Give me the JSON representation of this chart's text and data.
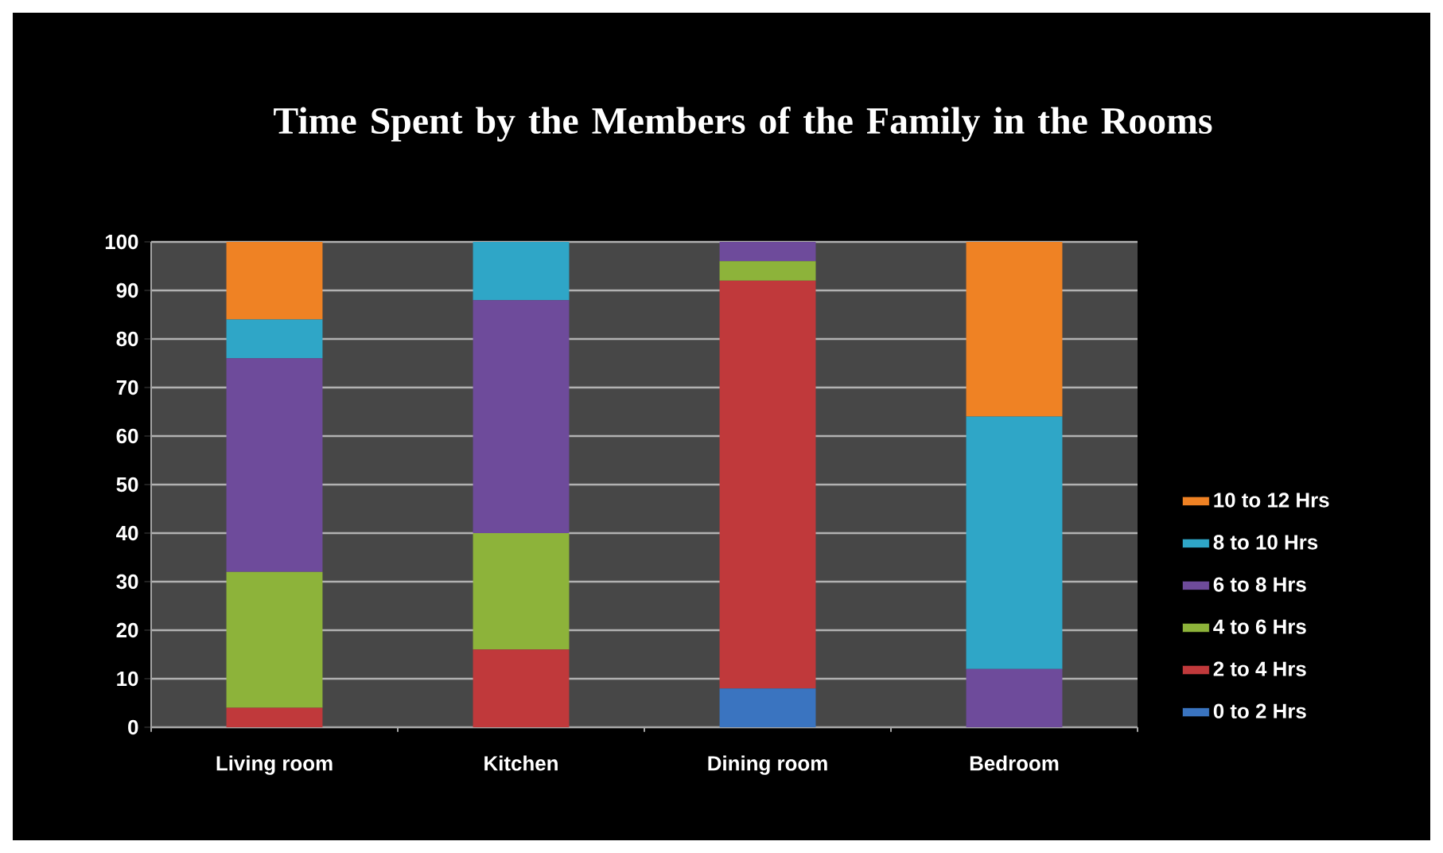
{
  "chart_data": {
    "type": "bar",
    "stacked": true,
    "title": "Time Spent by the Members of the Family in the Rooms",
    "categories": [
      "Living room",
      "Kitchen",
      "Dining room",
      "Bedroom"
    ],
    "series": [
      {
        "name": "0 to 2 Hrs",
        "color": "#3a74c0",
        "values": [
          0,
          0,
          8,
          0
        ]
      },
      {
        "name": "2 to 4 Hrs",
        "color": "#c0393b",
        "values": [
          4,
          16,
          84,
          0
        ]
      },
      {
        "name": "4 to 6 Hrs",
        "color": "#8db33a",
        "values": [
          28,
          24,
          4,
          0
        ]
      },
      {
        "name": "6 to 8 Hrs",
        "color": "#6e4b9b",
        "values": [
          44,
          48,
          4,
          12
        ]
      },
      {
        "name": "8 to 10 Hrs",
        "color": "#2fa6c7",
        "values": [
          8,
          12,
          0,
          52
        ]
      },
      {
        "name": "10 to 12 Hrs",
        "color": "#ef8224",
        "values": [
          16,
          0,
          0,
          36
        ]
      }
    ],
    "ylim": [
      0,
      100
    ],
    "yticks": [
      0,
      10,
      20,
      30,
      40,
      50,
      60,
      70,
      80,
      90,
      100
    ],
    "grid": "y",
    "legend": "right"
  }
}
